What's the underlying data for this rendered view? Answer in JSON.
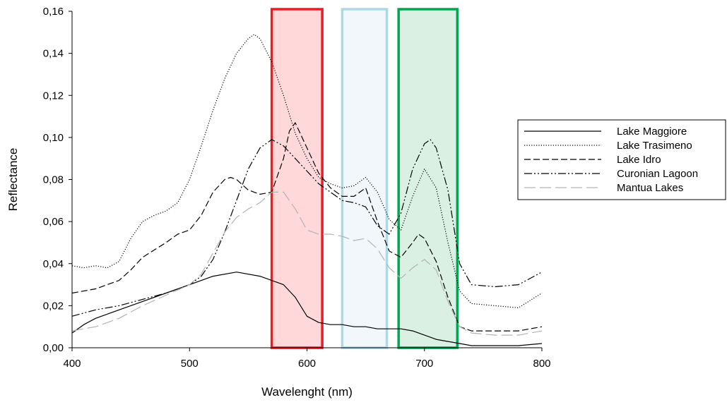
{
  "chart_data": {
    "type": "line",
    "title": "",
    "xlabel": "Wavelenght (nm)",
    "ylabel": "Reflectance",
    "xlim": [
      400,
      800
    ],
    "ylim": [
      0,
      0.16
    ],
    "x_ticks": [
      400,
      500,
      600,
      700,
      800
    ],
    "x_tick_labels": [
      "400",
      "500",
      "600",
      "700",
      "800"
    ],
    "y_ticks": [
      0,
      0.02,
      0.04,
      0.06,
      0.08,
      0.1,
      0.12,
      0.14,
      0.16
    ],
    "y_tick_labels": [
      "0,00",
      "0,02",
      "0,04",
      "0,06",
      "0,08",
      "0,10",
      "0,12",
      "0,14",
      "0,16"
    ],
    "grid": false,
    "legend_position": "right",
    "bands": [
      {
        "x_range": [
          570,
          613
        ],
        "edge_color": "#ed1c24",
        "fill_color": "#ffd9d9"
      },
      {
        "x_range": [
          630,
          668
        ],
        "edge_color": "#add8e6",
        "fill_color": "#f1f7fb"
      },
      {
        "x_range": [
          678,
          728
        ],
        "edge_color": "#00a651",
        "fill_color": "#d9f0e3"
      }
    ],
    "series": [
      {
        "name": "Lake Maggiore",
        "color": "#000000",
        "dash": "solid",
        "x": [
          400,
          410,
          420,
          440,
          460,
          480,
          500,
          520,
          540,
          560,
          570,
          580,
          590,
          600,
          610,
          620,
          630,
          640,
          650,
          660,
          670,
          680,
          690,
          700,
          710,
          720,
          730,
          740,
          760,
          780,
          800
        ],
        "y": [
          0.007,
          0.011,
          0.014,
          0.018,
          0.022,
          0.026,
          0.03,
          0.034,
          0.036,
          0.034,
          0.032,
          0.03,
          0.024,
          0.015,
          0.012,
          0.011,
          0.011,
          0.01,
          0.01,
          0.009,
          0.009,
          0.009,
          0.008,
          0.006,
          0.004,
          0.003,
          0.002,
          0.001,
          0.001,
          0.001,
          0.002
        ]
      },
      {
        "name": "Lake Trasimeno",
        "color": "#000000",
        "dash": "dotted",
        "x": [
          400,
          410,
          420,
          430,
          440,
          450,
          460,
          470,
          480,
          490,
          500,
          510,
          520,
          530,
          540,
          550,
          555,
          560,
          570,
          580,
          590,
          600,
          610,
          620,
          630,
          640,
          650,
          660,
          670,
          680,
          690,
          700,
          710,
          720,
          730,
          740,
          760,
          780,
          800
        ],
        "y": [
          0.039,
          0.038,
          0.039,
          0.038,
          0.041,
          0.052,
          0.06,
          0.063,
          0.065,
          0.069,
          0.08,
          0.096,
          0.113,
          0.128,
          0.14,
          0.147,
          0.149,
          0.147,
          0.136,
          0.12,
          0.102,
          0.09,
          0.081,
          0.078,
          0.076,
          0.077,
          0.081,
          0.074,
          0.061,
          0.056,
          0.072,
          0.085,
          0.076,
          0.05,
          0.027,
          0.021,
          0.02,
          0.019,
          0.026
        ]
      },
      {
        "name": "Lake Idro",
        "color": "#000000",
        "dash": "dashed",
        "x": [
          400,
          420,
          440,
          450,
          460,
          480,
          490,
          500,
          510,
          520,
          530,
          535,
          540,
          550,
          560,
          570,
          580,
          585,
          590,
          600,
          610,
          620,
          630,
          640,
          650,
          660,
          670,
          680,
          690,
          695,
          700,
          710,
          720,
          730,
          740,
          760,
          780,
          800
        ],
        "y": [
          0.026,
          0.028,
          0.032,
          0.037,
          0.043,
          0.05,
          0.054,
          0.056,
          0.063,
          0.074,
          0.08,
          0.081,
          0.08,
          0.075,
          0.073,
          0.074,
          0.09,
          0.103,
          0.107,
          0.095,
          0.083,
          0.076,
          0.072,
          0.072,
          0.076,
          0.06,
          0.046,
          0.043,
          0.05,
          0.054,
          0.052,
          0.041,
          0.024,
          0.01,
          0.008,
          0.008,
          0.008,
          0.01
        ]
      },
      {
        "name": "Curonian Lagoon",
        "color": "#000000",
        "dash": "dashdot",
        "x": [
          400,
          420,
          440,
          460,
          480,
          500,
          510,
          520,
          530,
          540,
          550,
          560,
          570,
          580,
          590,
          600,
          610,
          620,
          630,
          640,
          650,
          660,
          670,
          680,
          690,
          700,
          705,
          710,
          720,
          730,
          740,
          760,
          780,
          800
        ],
        "y": [
          0.015,
          0.018,
          0.02,
          0.023,
          0.026,
          0.03,
          0.034,
          0.042,
          0.055,
          0.07,
          0.085,
          0.095,
          0.099,
          0.096,
          0.09,
          0.084,
          0.078,
          0.074,
          0.07,
          0.069,
          0.067,
          0.058,
          0.054,
          0.064,
          0.085,
          0.097,
          0.099,
          0.095,
          0.075,
          0.04,
          0.03,
          0.029,
          0.03,
          0.036
        ]
      },
      {
        "name": "Mantua Lakes",
        "color": "#b3b3b3",
        "dash": "longdash",
        "x": [
          400,
          420,
          440,
          460,
          480,
          500,
          510,
          520,
          530,
          540,
          550,
          560,
          570,
          580,
          590,
          600,
          610,
          620,
          630,
          640,
          650,
          660,
          670,
          680,
          690,
          700,
          710,
          720,
          730,
          740,
          760,
          780,
          800
        ],
        "y": [
          0.008,
          0.01,
          0.014,
          0.02,
          0.025,
          0.03,
          0.035,
          0.045,
          0.055,
          0.062,
          0.066,
          0.069,
          0.074,
          0.074,
          0.066,
          0.056,
          0.054,
          0.054,
          0.053,
          0.051,
          0.052,
          0.047,
          0.038,
          0.033,
          0.038,
          0.042,
          0.037,
          0.022,
          0.01,
          0.007,
          0.006,
          0.006,
          0.008
        ]
      }
    ]
  }
}
